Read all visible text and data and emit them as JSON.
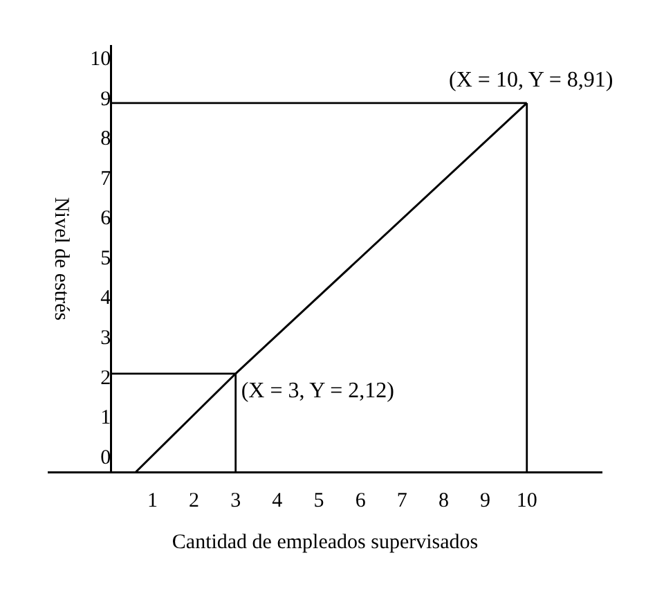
{
  "chart_data": {
    "type": "line",
    "xlabel": "Cantidad de empleados supervisados",
    "ylabel": "Nivel de estrés",
    "x": [
      0.6,
      3,
      10
    ],
    "series": [
      {
        "color": "#000000",
        "values": [
          -0.35,
          2.12,
          8.91
        ]
      }
    ],
    "xlim": [
      -1.5,
      11.8
    ],
    "xticks": [
      1,
      2,
      3,
      4,
      5,
      6,
      7,
      8,
      9,
      10
    ],
    "ylim": [
      -0.35,
      10.35
    ],
    "yticks": [
      0,
      1,
      2,
      3,
      4,
      5,
      6,
      7,
      8,
      9,
      10
    ],
    "line_style": "solid",
    "ref_lines": [
      {
        "axis": "y",
        "value": 8.91,
        "color": "#000000"
      },
      {
        "axis": "x",
        "value": 10,
        "color": "#000000"
      },
      {
        "axis": "y",
        "value": 2.12,
        "color": "#000000"
      },
      {
        "axis": "x",
        "value": 3,
        "color": "#000000"
      }
    ],
    "annotations": [
      {
        "text": "(X = 10, Y = 8,91)",
        "x": 10,
        "y": 8.91
      },
      {
        "text": "(X = 3, Y = 2,12)",
        "x": 3,
        "y": 2.12
      }
    ]
  }
}
